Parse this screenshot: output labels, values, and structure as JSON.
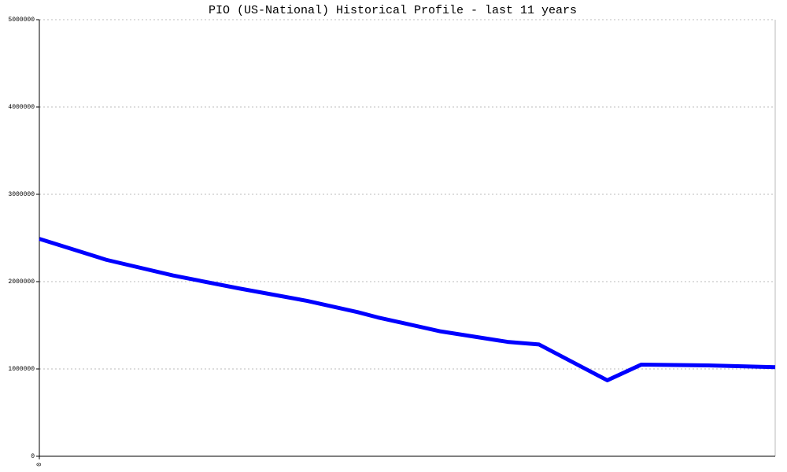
{
  "chart_data": {
    "type": "line",
    "title": "PIO (US-National) Historical Profile - last 11 years",
    "x": [
      0,
      1,
      2,
      3,
      4,
      4.76,
      5.06,
      6,
      7,
      7.47,
      8.49,
      9,
      10,
      11
    ],
    "series": [
      {
        "name": "PIO",
        "color": "#0000ff",
        "values": [
          2490000,
          2250000,
          2070000,
          1920000,
          1780000,
          1650000,
          1590000,
          1430000,
          1310000,
          1280000,
          870000,
          1050000,
          1040000,
          1020000
        ]
      }
    ],
    "xlim": [
      0,
      11
    ],
    "xticks": [
      0
    ],
    "ylim": [
      0,
      5000000
    ],
    "yticks": [
      0,
      1000000,
      2000000,
      3000000,
      4000000,
      5000000
    ],
    "grid": true
  }
}
